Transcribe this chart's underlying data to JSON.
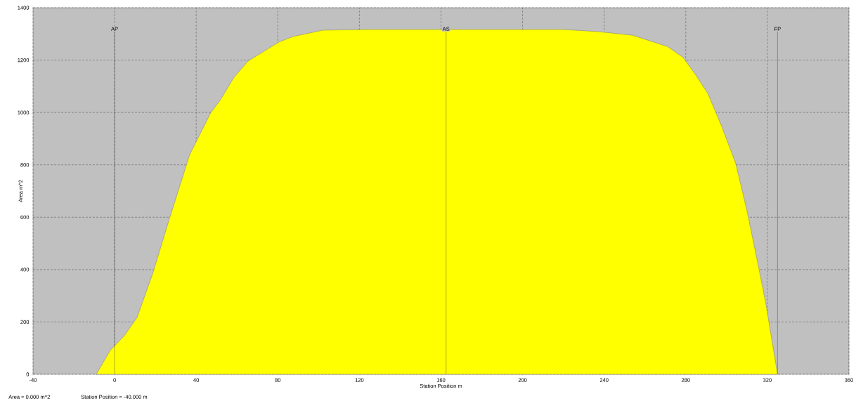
{
  "chart_data": {
    "type": "area",
    "xlabel": "Station Position  m",
    "ylabel": "Area  m^2",
    "x": [
      -9,
      -2.2,
      4.7,
      11,
      18.6,
      26.5,
      36.8,
      47.2,
      51.7,
      58.5,
      65.4,
      80.6,
      87.5,
      102,
      123,
      160,
      219.5,
      236.7,
      253.9,
      271,
      278.7,
      284.9,
      290.8,
      297.6,
      304.5,
      310,
      315.9,
      319.3,
      325
    ],
    "series": [
      {
        "color": "#ffff00",
        "values": [
          0,
          91,
          147,
          217,
          383,
          585,
          839,
          1000,
          1046,
          1134,
          1196,
          1269,
          1290,
          1314,
          1317,
          1317,
          1317,
          1309,
          1295,
          1252,
          1210,
          1143,
          1073,
          947,
          805,
          625,
          402,
          268,
          0
        ]
      }
    ],
    "xlim": [
      -40,
      360
    ],
    "ylim": [
      0,
      1400
    ],
    "xticks": [
      -40,
      0,
      40,
      80,
      120,
      160,
      200,
      240,
      280,
      320,
      360
    ],
    "yticks": [
      0,
      200,
      400,
      600,
      800,
      1000,
      1200,
      1400
    ],
    "grid": true,
    "ref_lines": [
      {
        "axis": "x",
        "value": 0,
        "label": "AP"
      },
      {
        "axis": "x",
        "value": 162.5,
        "label": "AS"
      },
      {
        "axis": "x",
        "value": 325,
        "label": "FP"
      }
    ],
    "annotations": [
      "Area =  0.000 m^2",
      "Station Position =  -40.000 m"
    ]
  }
}
